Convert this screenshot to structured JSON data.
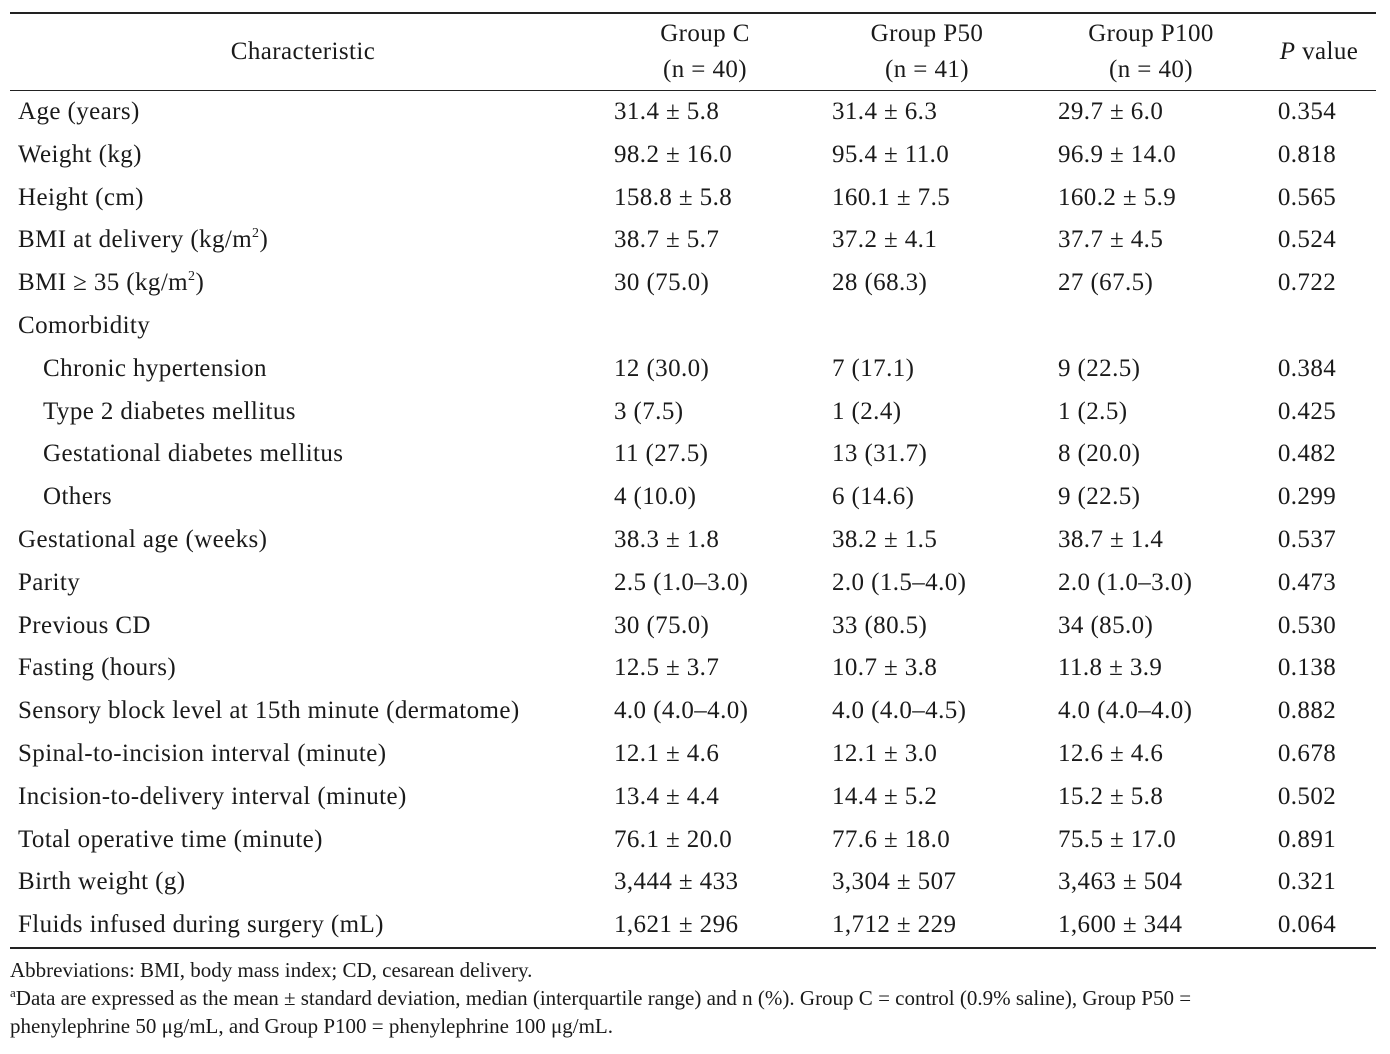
{
  "table": {
    "header": {
      "characteristic": "Characteristic",
      "groups": [
        {
          "name": "Group C",
          "n": "(n = 40)"
        },
        {
          "name": "Group P50",
          "n": "(n = 41)"
        },
        {
          "name": "Group P100",
          "n": "(n = 40)"
        }
      ],
      "p_italic": "P",
      "p_rest": " value"
    },
    "rows": [
      {
        "label": "Age (years)",
        "c": "31.4 ± 5.8",
        "p50": "31.4 ± 6.3",
        "p100": "29.7 ± 6.0",
        "p": "0.354"
      },
      {
        "label": "Weight (kg)",
        "c": "98.2 ± 16.0",
        "p50": "95.4 ± 11.0",
        "p100": "96.9 ± 14.0",
        "p": "0.818"
      },
      {
        "label": "Height (cm)",
        "c": "158.8 ± 5.8",
        "p50": "160.1 ± 7.5",
        "p100": "160.2 ± 5.9",
        "p": "0.565"
      },
      {
        "label_pre": "BMI at delivery (kg/m",
        "label_sup": "2",
        "label_post": ")",
        "c": "38.7 ± 5.7",
        "p50": "37.2 ± 4.1",
        "p100": "37.7 ± 4.5",
        "p": "0.524"
      },
      {
        "label_pre": "BMI ≥ 35 (kg/m",
        "label_sup": "2",
        "label_post": ")",
        "c": "30 (75.0)",
        "p50": "28 (68.3)",
        "p100": "27 (67.5)",
        "p": "0.722"
      },
      {
        "label": "Comorbidity",
        "c": "",
        "p50": "",
        "p100": "",
        "p": ""
      },
      {
        "label": "Chronic hypertension",
        "c": "12 (30.0)",
        "p50": "7 (17.1)",
        "p100": "9 (22.5)",
        "p": "0.384"
      },
      {
        "label": "Type 2 diabetes mellitus",
        "c": "3 (7.5)",
        "p50": "1 (2.4)",
        "p100": "1 (2.5)",
        "p": "0.425"
      },
      {
        "label": "Gestational diabetes mellitus",
        "c": "11 (27.5)",
        "p50": "13 (31.7)",
        "p100": "8 (20.0)",
        "p": "0.482"
      },
      {
        "label": "Others",
        "c": "4 (10.0)",
        "p50": "6 (14.6)",
        "p100": "9 (22.5)",
        "p": "0.299"
      },
      {
        "label": "Gestational age (weeks)",
        "c": "38.3 ± 1.8",
        "p50": "38.2 ± 1.5",
        "p100": "38.7 ± 1.4",
        "p": "0.537"
      },
      {
        "label": "Parity",
        "c": "2.5 (1.0–3.0)",
        "p50": "2.0 (1.5–4.0)",
        "p100": "2.0 (1.0–3.0)",
        "p": "0.473"
      },
      {
        "label": "Previous CD",
        "c": "30 (75.0)",
        "p50": "33 (80.5)",
        "p100": "34 (85.0)",
        "p": "0.530"
      },
      {
        "label": "Fasting (hours)",
        "c": "12.5 ± 3.7",
        "p50": "10.7 ± 3.8",
        "p100": "11.8 ± 3.9",
        "p": "0.138"
      },
      {
        "label": "Sensory block level at 15th minute (dermatome)",
        "c": "4.0 (4.0–4.0)",
        "p50": "4.0 (4.0–4.5)",
        "p100": "4.0 (4.0–4.0)",
        "p": "0.882"
      },
      {
        "label": "Spinal-to-incision interval (minute)",
        "c": "12.1 ± 4.6",
        "p50": "12.1 ± 3.0",
        "p100": "12.6 ± 4.6",
        "p": "0.678"
      },
      {
        "label": "Incision-to-delivery interval (minute)",
        "c": "13.4 ± 4.4",
        "p50": "14.4 ± 5.2",
        "p100": "15.2 ± 5.8",
        "p": "0.502"
      },
      {
        "label": "Total operative time (minute)",
        "c": "76.1 ± 20.0",
        "p50": "77.6 ± 18.0",
        "p100": "75.5 ± 17.0",
        "p": "0.891"
      },
      {
        "label": "Birth weight (g)",
        "c": "3,444 ± 433",
        "p50": "3,304 ± 507",
        "p100": "3,463 ± 504",
        "p": "0.321"
      },
      {
        "label": "Fluids infused during surgery (mL)",
        "c": "1,621 ± 296",
        "p50": "1,712 ± 229",
        "p100": "1,600 ± 344",
        "p": "0.064"
      }
    ]
  },
  "footnotes": {
    "abbreviations": "Abbreviations: BMI, body mass index; CD, cesarean delivery.",
    "note_marker": "a",
    "note_line1": "Data are expressed as the mean ± standard deviation, median (interquartile range) and n (%). Group C = control (0.9% saline), Group P50 =",
    "note_line2": "phenylephrine 50 μg/mL, and Group P100 = phenylephrine 100 μg/mL."
  }
}
